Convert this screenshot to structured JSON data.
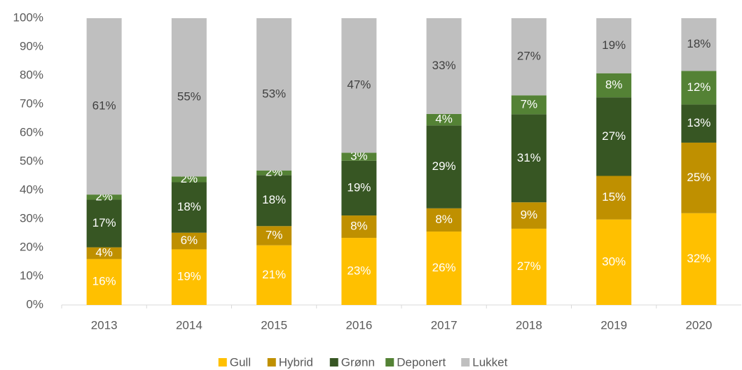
{
  "chart_data": {
    "type": "stacked_bar",
    "categories": [
      "2013",
      "2014",
      "2015",
      "2016",
      "2017",
      "2018",
      "2019",
      "2020"
    ],
    "series": [
      {
        "name": "Gull",
        "color": "#FFC000",
        "label_color": "#FFFFFF",
        "values": [
          16,
          19.4,
          20.8,
          23.4,
          25.6,
          26.6,
          29.8,
          32.0
        ],
        "value_labels": [
          "16%",
          "19%",
          "21%",
          "23%",
          "26%",
          "27%",
          "30%",
          "32%"
        ]
      },
      {
        "name": "Hybrid",
        "color": "#BF9000",
        "label_color": "#FFFFFF",
        "values": [
          4.1,
          5.8,
          6.7,
          7.8,
          8.1,
          9.2,
          15.2,
          24.6
        ],
        "value_labels": [
          "4%",
          "6%",
          "7%",
          "8%",
          "8%",
          "9%",
          "15%",
          "25%"
        ]
      },
      {
        "name": "Grønn",
        "color": "#375623",
        "label_color": "#FFFFFF",
        "values": [
          16.6,
          17.6,
          17.8,
          19.1,
          28.9,
          30.7,
          27.4,
          13.3
        ],
        "value_labels": [
          "17%",
          "18%",
          "18%",
          "19%",
          "29%",
          "31%",
          "27%",
          "13%"
        ]
      },
      {
        "name": "Deponert",
        "color": "#548235",
        "label_color": "#FFFFFF",
        "values": [
          1.8,
          2.0,
          1.6,
          2.8,
          4.0,
          6.6,
          8.4,
          11.7
        ],
        "value_labels": [
          "2%",
          "2%",
          "2%",
          "3%",
          "4%",
          "7%",
          "8%",
          "12%"
        ]
      },
      {
        "name": "Lukket",
        "color": "#BFBFBF",
        "label_color": "#404040",
        "values": [
          61.5,
          55.2,
          53.1,
          46.9,
          33.4,
          26.9,
          19.2,
          18.4
        ],
        "value_labels": [
          "61%",
          "55%",
          "53%",
          "47%",
          "33%",
          "27%",
          "19%",
          "18%"
        ]
      }
    ],
    "ylim": [
      0,
      100
    ],
    "yticks": [
      {
        "value": 0,
        "label": "0%"
      },
      {
        "value": 10,
        "label": "10%"
      },
      {
        "value": 20,
        "label": "20%"
      },
      {
        "value": 30,
        "label": "30%"
      },
      {
        "value": 40,
        "label": "40%"
      },
      {
        "value": 50,
        "label": "50%"
      },
      {
        "value": 60,
        "label": "60%"
      },
      {
        "value": 70,
        "label": "70%"
      },
      {
        "value": 80,
        "label": "80%"
      },
      {
        "value": 90,
        "label": "90%"
      },
      {
        "value": 100,
        "label": "100%"
      }
    ],
    "grid": false,
    "legend": "bottom"
  }
}
